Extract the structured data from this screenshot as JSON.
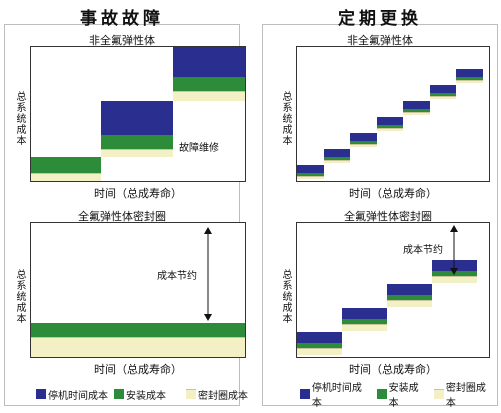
{
  "left": {
    "title": "事故故障",
    "top_chart_title": "非全氟弹性体",
    "top_annotation": "故障维修",
    "bottom_chart_title": "全氟弹性体密封圈",
    "bottom_annotation": "成本节约",
    "x_label": "时间（总成寿命）",
    "y_label": "总系统成本"
  },
  "right": {
    "title": "定期更换",
    "top_chart_title": "非全氟弹性体",
    "bottom_chart_title": "全氟弹性体密封圈",
    "bottom_annotation": "成本节约",
    "x_label": "时间（总成寿命）",
    "y_label": "总系统成本"
  },
  "legend": {
    "downtime": "停机时间成本",
    "install": "安装成本",
    "seal": "密封圈成本",
    "right_install_partial": "安装成本"
  },
  "colors": {
    "downtime": "#2a2f8f",
    "install": "#2c8c3a",
    "seal": "#f3f0c6"
  },
  "chart_data": [
    {
      "type": "area",
      "title": "非全氟弹性体",
      "xlabel": "时间（总成寿命）",
      "ylabel": "总系统成本",
      "series": [
        {
          "name": "停机时间成本",
          "steps": 3
        },
        {
          "name": "安装成本",
          "steps": 3
        },
        {
          "name": "密封圈成本",
          "steps": 3
        }
      ]
    },
    {
      "type": "area",
      "title": "全氟弹性体密封圈",
      "xlabel": "时间（总成寿命）",
      "ylabel": "总系统成本",
      "series": [
        {
          "name": "安装成本",
          "steps": 1
        },
        {
          "name": "密封圈成本",
          "steps": 1
        }
      ]
    },
    {
      "type": "area",
      "title": "非全氟弹性体",
      "xlabel": "时间（总成寿命）",
      "ylabel": "总系统成本",
      "series": [
        {
          "name": "停机时间成本",
          "steps": 7
        },
        {
          "name": "安装成本",
          "steps": 7
        },
        {
          "name": "密封圈成本",
          "steps": 7
        }
      ]
    },
    {
      "type": "area",
      "title": "全氟弹性体密封圈",
      "xlabel": "时间（总成寿命）",
      "ylabel": "总系统成本",
      "series": [
        {
          "name": "停机时间成本",
          "steps": 4
        },
        {
          "name": "安装成本",
          "steps": 4
        },
        {
          "name": "密封圈成本",
          "steps": 4
        }
      ]
    }
  ]
}
